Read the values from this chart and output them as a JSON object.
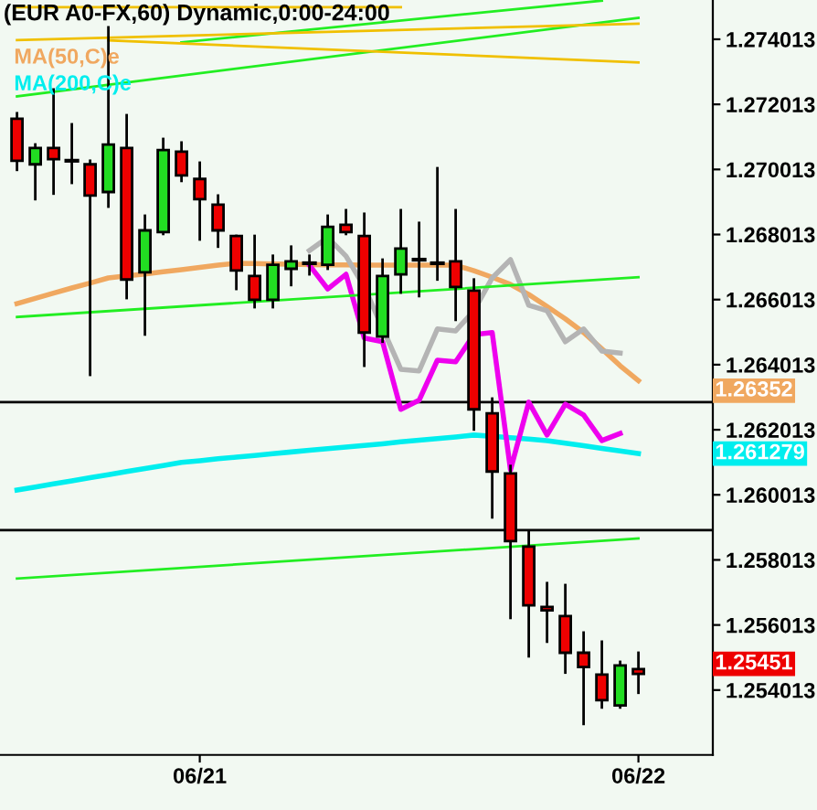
{
  "chart_data": {
    "type": "candlestick",
    "title": "(EUR A0-FX,60) Dynamic,0:00-24:00",
    "categories": [
      null,
      null,
      null,
      null,
      null,
      null,
      null,
      null,
      null,
      null,
      "06/21",
      null,
      null,
      null,
      null,
      null,
      null,
      null,
      null,
      null,
      null,
      null,
      null,
      null,
      null,
      null,
      null,
      null,
      null,
      null,
      null,
      null,
      null,
      null,
      "06/22"
    ],
    "ohlc": [
      [
        1.27157,
        1.27174,
        1.27,
        1.27028
      ],
      [
        1.27017,
        1.27078,
        1.2691,
        1.27067
      ],
      [
        1.27067,
        1.27247,
        1.26927,
        1.27033
      ],
      [
        1.27028,
        1.2714,
        1.2696,
        1.27028
      ],
      [
        1.27017,
        1.27028,
        1.2637,
        1.26921
      ],
      [
        1.26932,
        1.27438,
        1.26887,
        1.27078
      ],
      [
        1.27067,
        1.27168,
        1.26606,
        1.26663
      ],
      [
        1.26685,
        1.26859,
        1.26494,
        1.26814
      ],
      [
        1.26809,
        1.27095,
        1.26803,
        1.27061
      ],
      [
        1.27056,
        1.27084,
        1.26966,
        1.26983
      ],
      [
        1.26972,
        1.27022,
        1.26786,
        1.2691
      ],
      [
        1.26893,
        1.26921,
        1.26764,
        1.26814
      ],
      [
        1.26797,
        1.26797,
        1.26634,
        1.26691
      ],
      [
        1.26674,
        1.26797,
        1.26578,
        1.26601
      ],
      [
        1.26601,
        1.26736,
        1.26578,
        1.26708
      ],
      [
        1.26696,
        1.26764,
        1.26646,
        1.26719
      ],
      [
        1.26713,
        1.26736,
        1.26679,
        1.26713
      ],
      [
        1.26708,
        1.26859,
        1.26696,
        1.26825
      ],
      [
        1.26831,
        1.26876,
        1.26803,
        1.26809
      ],
      [
        1.26797,
        1.26865,
        1.26398,
        1.265
      ],
      [
        1.26488,
        1.26724,
        1.26472,
        1.26674
      ],
      [
        1.26679,
        1.26876,
        1.26623,
        1.26758
      ],
      [
        1.26724,
        1.26837,
        1.26612,
        1.26724
      ],
      [
        1.26713,
        1.27005,
        1.26663,
        1.26713
      ],
      [
        1.26719,
        1.26876,
        1.26539,
        1.2664
      ],
      [
        1.26629,
        1.26663,
        1.26202,
        1.26264
      ],
      [
        1.26252,
        1.26297,
        1.25932,
        1.26073
      ],
      [
        1.26067,
        1.2609,
        1.25623,
        1.25859
      ],
      [
        1.25842,
        1.25887,
        1.25505,
        1.25662
      ],
      [
        1.25657,
        1.2573,
        1.2555,
        1.25646
      ],
      [
        1.25629,
        1.25724,
        1.25455,
        1.25516
      ],
      [
        1.25516,
        1.25578,
        1.25297,
        1.25472
      ],
      [
        1.25449,
        1.2555,
        1.25348,
        1.2537
      ],
      [
        1.25354,
        1.25488,
        1.25348,
        1.25477
      ],
      [
        1.25466,
        1.25516,
        1.25393,
        1.25451
      ]
    ],
    "colors": [
      "#ee0000",
      "#22dd22",
      "#ee0000",
      "#000000",
      "#ee0000",
      "#22dd22",
      "#ee0000",
      "#22dd22",
      "#22dd22",
      "#ee0000",
      "#ee0000",
      "#ee0000",
      "#ee0000",
      "#ee0000",
      "#22dd22",
      "#22dd22",
      "#000000",
      "#22dd22",
      "#ee0000",
      "#ee0000",
      "#22dd22",
      "#22dd22",
      "#000000",
      "#000000",
      "#ee0000",
      "#ee0000",
      "#ee0000",
      "#ee0000",
      "#ee0000",
      "#ee0000",
      "#ee0000",
      "#ee0000",
      "#ee0000",
      "#22dd22",
      "#ee0000"
    ],
    "series": [
      {
        "name": "MA(50,C)e",
        "type": "line",
        "color": "#f0a860",
        "values": [
          1.26589,
          1.26605,
          1.26621,
          1.26637,
          1.26652,
          1.26668,
          1.26674,
          1.2668,
          1.26687,
          1.26693,
          1.267,
          1.26707,
          1.26713,
          1.26712,
          1.26711,
          1.2671,
          1.26709,
          1.26708,
          1.26708,
          1.26707,
          1.26707,
          1.26707,
          1.26707,
          1.26707,
          1.26707,
          1.2669,
          1.2667,
          1.26648,
          1.26617,
          1.2658,
          1.26542,
          1.265,
          1.2645,
          1.26398,
          1.26352
        ]
      },
      {
        "name": "MA(200,C)e",
        "type": "line",
        "color": "#00eeee",
        "values": [
          1.26016,
          1.26025,
          1.26035,
          1.26044,
          1.26054,
          1.26063,
          1.26073,
          1.26082,
          1.26091,
          1.26101,
          1.26106,
          1.26112,
          1.26117,
          1.26122,
          1.26128,
          1.26133,
          1.26138,
          1.26143,
          1.26148,
          1.26153,
          1.26158,
          1.26164,
          1.26169,
          1.26174,
          1.26179,
          1.26185,
          1.26181,
          1.26177,
          1.26173,
          1.26168,
          1.2616,
          1.26152,
          1.26144,
          1.26136,
          1.26128
        ]
      },
      {
        "type": "line",
        "color": "#ee00ee",
        "values": [
          null,
          null,
          null,
          null,
          null,
          null,
          null,
          null,
          null,
          null,
          null,
          null,
          null,
          null,
          null,
          null,
          1.26707,
          1.26634,
          1.26679,
          1.26483,
          1.26472,
          1.26264,
          1.26292,
          1.26415,
          1.2641,
          1.26494,
          1.265,
          1.26078,
          1.26286,
          1.26185,
          1.2628,
          1.26247,
          1.26168,
          1.2619,
          null
        ]
      },
      {
        "type": "line",
        "color": "#b4b4b4",
        "values": [
          null,
          null,
          null,
          null,
          null,
          null,
          null,
          null,
          null,
          null,
          null,
          null,
          null,
          null,
          null,
          null,
          1.26752,
          1.26792,
          1.26735,
          1.2664,
          null,
          1.26387,
          1.26382,
          1.26511,
          1.26505,
          1.26567,
          1.26668,
          1.26724,
          1.26584,
          1.26567,
          1.26472,
          1.26511,
          1.26443,
          1.26437,
          null
        ]
      },
      {
        "type": "line",
        "color": "#22ee22",
        "values": [
          1.27226,
          null,
          null,
          null,
          null,
          null,
          null,
          null,
          null,
          null,
          null,
          null,
          null,
          null,
          null,
          null,
          null,
          null,
          null,
          null,
          null,
          null,
          null,
          null,
          null,
          null,
          null,
          null,
          null,
          null,
          null,
          null,
          null,
          null,
          1.27467
        ]
      },
      {
        "type": "line",
        "color": "#22ee22",
        "values": [
          null,
          null,
          null,
          null,
          null,
          null,
          null,
          null,
          null,
          1.27392,
          null,
          null,
          null,
          null,
          null,
          null,
          null,
          null,
          null,
          null,
          null,
          null,
          null,
          null,
          null,
          null,
          null,
          null,
          null,
          null,
          null,
          null,
          1.2752,
          null,
          null
        ]
      },
      {
        "type": "line",
        "color": "#22ee22",
        "values": [
          1.26548,
          null,
          null,
          null,
          null,
          null,
          null,
          null,
          null,
          null,
          null,
          null,
          null,
          null,
          null,
          null,
          null,
          null,
          null,
          null,
          null,
          null,
          null,
          null,
          null,
          null,
          null,
          null,
          null,
          null,
          null,
          null,
          null,
          null,
          1.2667
        ]
      },
      {
        "type": "line",
        "color": "#22ee22",
        "values": [
          1.25744,
          null,
          null,
          null,
          null,
          null,
          null,
          null,
          null,
          null,
          null,
          null,
          null,
          null,
          null,
          null,
          null,
          null,
          null,
          null,
          null,
          null,
          null,
          null,
          null,
          null,
          null,
          null,
          null,
          null,
          null,
          null,
          null,
          null,
          1.25867
        ]
      },
      {
        "type": "line",
        "color": "#f0c000",
        "values": [
          1.27399,
          null,
          null,
          null,
          null,
          null,
          null,
          null,
          null,
          null,
          null,
          null,
          null,
          null,
          null,
          null,
          null,
          null,
          null,
          null,
          null,
          null,
          null,
          null,
          null,
          null,
          null,
          null,
          null,
          null,
          null,
          null,
          null,
          null,
          1.27449
        ]
      },
      {
        "type": "line",
        "color": "#f0c000",
        "values": [
          null,
          null,
          null,
          null,
          null,
          1.27398,
          null,
          null,
          null,
          null,
          null,
          null,
          null,
          null,
          null,
          null,
          null,
          null,
          null,
          null,
          null,
          null,
          null,
          null,
          null,
          null,
          null,
          null,
          null,
          null,
          null,
          null,
          null,
          null,
          1.2733
        ]
      },
      {
        "type": "line",
        "color": "#f0c000",
        "values": [
          1.275,
          null,
          null,
          null,
          null,
          null,
          null,
          null,
          null,
          null,
          null,
          null,
          null,
          null,
          null,
          null,
          null,
          null,
          null,
          null,
          null,
          1.275,
          null,
          null,
          null,
          null,
          null,
          null,
          null,
          null,
          null,
          null,
          null,
          null,
          null
        ]
      }
    ],
    "ref_lines": [
      {
        "axis": "y",
        "value": 1.26286,
        "color": "#000000"
      },
      {
        "axis": "y",
        "value": 1.25893,
        "color": "#000000"
      }
    ],
    "annotations": [
      "1.26352",
      "1.261279",
      "1.25451"
    ],
    "ylim": [
      1.25202,
      1.27522
    ],
    "yticks": [
      1.254013,
      1.256013,
      1.258013,
      1.260013,
      1.262013,
      1.264013,
      1.266013,
      1.268013,
      1.270013,
      1.272013,
      1.274013
    ],
    "grid": false,
    "legend": "top left"
  }
}
